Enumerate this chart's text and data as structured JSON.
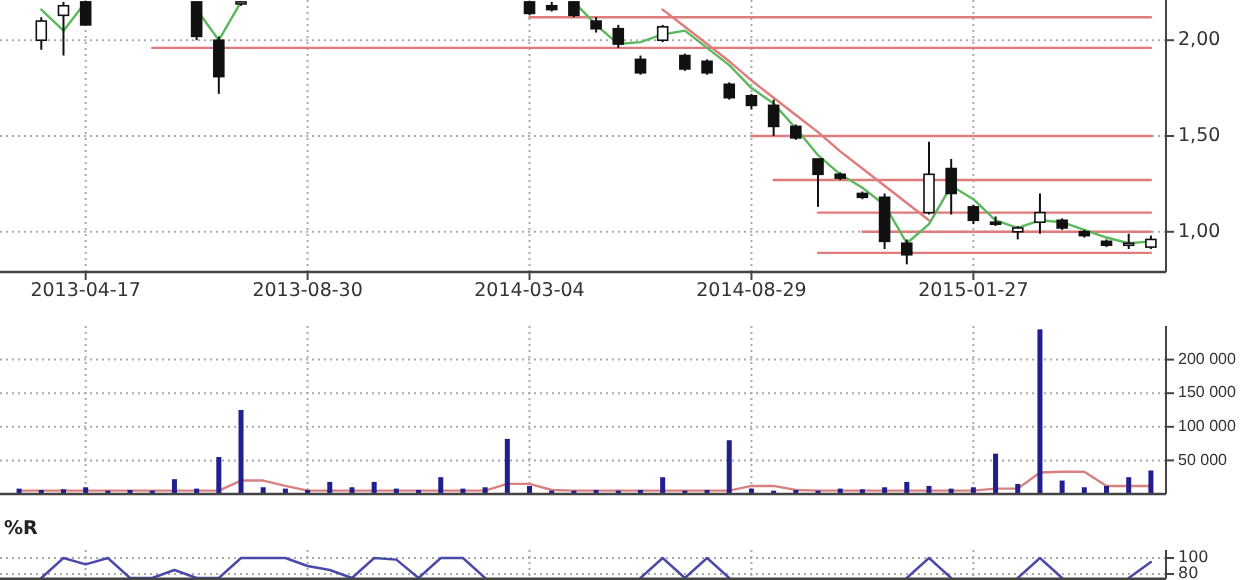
{
  "chart_data": [
    {
      "type": "candlestick",
      "categories": [
        null,
        null,
        null,
        "2013-04-17",
        null,
        null,
        null,
        null,
        null,
        null,
        null,
        null,
        null,
        "2013-08-30",
        null,
        null,
        null,
        null,
        null,
        null,
        null,
        null,
        null,
        "2014-03-04",
        null,
        null,
        null,
        null,
        null,
        null,
        null,
        null,
        null,
        "2014-08-29",
        null,
        null,
        null,
        null,
        null,
        null,
        null,
        null,
        null,
        "2015-01-27",
        null,
        null,
        null,
        null,
        null,
        null,
        null,
        null
      ],
      "ohlc": [
        null,
        [
          2.0,
          2.12,
          1.95,
          2.1
        ],
        [
          2.13,
          2.2,
          1.92,
          2.18
        ],
        [
          2.2,
          2.2,
          2.08,
          2.08
        ],
        null,
        null,
        null,
        null,
        [
          2.2,
          2.2,
          2.0,
          2.02
        ],
        [
          2.0,
          2.02,
          1.72,
          1.81
        ],
        [
          2.19,
          2.2,
          2.18,
          2.2
        ],
        null,
        null,
        null,
        null,
        null,
        null,
        null,
        null,
        null,
        null,
        null,
        null,
        [
          2.2,
          2.2,
          2.13,
          2.14
        ],
        [
          2.18,
          2.2,
          2.15,
          2.16
        ],
        [
          2.2,
          2.2,
          2.12,
          2.13
        ],
        [
          2.1,
          2.12,
          2.04,
          2.06
        ],
        [
          2.06,
          2.08,
          1.96,
          1.98
        ],
        [
          1.9,
          1.92,
          1.82,
          1.83
        ],
        [
          2.0,
          2.08,
          1.99,
          2.07
        ],
        [
          1.92,
          1.93,
          1.84,
          1.85
        ],
        [
          1.89,
          1.9,
          1.82,
          1.83
        ],
        [
          1.77,
          1.78,
          1.69,
          1.7
        ],
        [
          1.71,
          1.72,
          1.64,
          1.66
        ],
        [
          1.66,
          1.69,
          1.5,
          1.55
        ],
        [
          1.55,
          1.56,
          1.48,
          1.49
        ],
        [
          1.38,
          1.38,
          1.13,
          1.3
        ],
        [
          1.3,
          1.31,
          1.27,
          1.28
        ],
        [
          1.2,
          1.21,
          1.17,
          1.18
        ],
        [
          1.18,
          1.2,
          0.91,
          0.95
        ],
        [
          0.94,
          0.96,
          0.83,
          0.88
        ],
        [
          1.1,
          1.47,
          1.09,
          1.3
        ],
        [
          1.33,
          1.38,
          1.09,
          1.2
        ],
        [
          1.13,
          1.14,
          1.04,
          1.06
        ],
        [
          1.05,
          1.08,
          1.03,
          1.04
        ],
        [
          1.0,
          1.03,
          0.96,
          1.02
        ],
        [
          1.05,
          1.2,
          0.99,
          1.1
        ],
        [
          1.06,
          1.07,
          1.01,
          1.02
        ],
        [
          1.0,
          1.01,
          0.97,
          0.98
        ],
        [
          0.95,
          0.96,
          0.92,
          0.93
        ],
        [
          0.93,
          0.99,
          0.91,
          0.94
        ],
        [
          0.92,
          0.98,
          0.91,
          0.96
        ]
      ],
      "series": [
        {
          "type": "line",
          "color": "#e07b7b",
          "values": [
            null,
            null,
            null,
            null,
            null,
            null,
            null,
            null,
            null,
            null,
            null,
            null,
            null,
            null,
            null,
            null,
            null,
            null,
            null,
            null,
            null,
            null,
            null,
            2.12,
            2.12,
            2.12,
            2.12,
            2.12,
            2.12,
            2.12,
            2.12,
            2.12,
            2.12,
            2.12,
            2.12,
            2.12,
            2.12,
            2.12,
            2.12,
            2.12,
            2.12,
            2.12,
            2.12,
            2.12,
            2.12,
            2.12,
            2.12,
            2.12,
            2.12,
            2.12,
            2.12,
            2.12
          ]
        },
        {
          "type": "line",
          "color": "#e07b7b",
          "values": [
            null,
            null,
            null,
            null,
            null,
            null,
            1.96,
            1.96,
            1.96,
            1.96,
            1.96,
            1.96,
            1.96,
            1.96,
            1.96,
            1.96,
            1.96,
            1.96,
            1.96,
            1.96,
            1.96,
            1.96,
            1.96,
            1.96,
            1.96,
            1.96,
            1.96,
            1.96,
            1.96,
            1.96,
            1.96,
            1.96,
            1.96,
            1.96,
            1.96,
            1.96,
            1.96,
            1.96,
            1.96,
            1.96,
            1.96,
            1.96,
            1.96,
            1.96,
            1.96,
            1.96,
            1.96,
            1.96,
            1.96,
            1.96,
            1.96,
            1.96
          ]
        },
        {
          "type": "line",
          "color": "#e07b7b",
          "values": [
            null,
            null,
            null,
            null,
            null,
            null,
            null,
            null,
            null,
            null,
            null,
            null,
            null,
            null,
            null,
            null,
            null,
            null,
            null,
            null,
            null,
            null,
            null,
            null,
            null,
            null,
            null,
            null,
            null,
            null,
            null,
            null,
            null,
            1.5,
            1.5,
            1.5,
            1.5,
            1.5,
            1.5,
            1.5,
            1.5,
            1.5,
            1.5,
            1.5,
            1.5,
            1.5,
            1.5,
            1.5,
            1.5,
            1.5,
            1.5,
            1.5
          ]
        },
        {
          "type": "line",
          "color": "#e07b7b",
          "values": [
            null,
            null,
            null,
            null,
            null,
            null,
            null,
            null,
            null,
            null,
            null,
            null,
            null,
            null,
            null,
            null,
            null,
            null,
            null,
            null,
            null,
            null,
            null,
            null,
            null,
            null,
            null,
            null,
            null,
            null,
            null,
            null,
            null,
            null,
            1.27,
            1.27,
            1.27,
            1.27,
            1.27,
            1.27,
            1.27,
            1.27,
            1.27,
            1.27,
            1.27,
            1.27,
            1.27,
            1.27,
            1.27,
            1.27,
            1.27,
            1.27
          ]
        },
        {
          "type": "line",
          "color": "#e07b7b",
          "values": [
            null,
            null,
            null,
            null,
            null,
            null,
            null,
            null,
            null,
            null,
            null,
            null,
            null,
            null,
            null,
            null,
            null,
            null,
            null,
            null,
            null,
            null,
            null,
            null,
            null,
            null,
            null,
            null,
            null,
            null,
            null,
            null,
            null,
            null,
            null,
            null,
            1.1,
            1.1,
            1.1,
            1.1,
            1.1,
            1.1,
            1.1,
            1.1,
            1.1,
            1.1,
            1.1,
            1.1,
            1.1,
            1.1,
            1.1,
            1.1
          ]
        },
        {
          "type": "line",
          "color": "#e07b7b",
          "values": [
            null,
            null,
            null,
            null,
            null,
            null,
            null,
            null,
            null,
            null,
            null,
            null,
            null,
            null,
            null,
            null,
            null,
            null,
            null,
            null,
            null,
            null,
            null,
            null,
            null,
            null,
            null,
            null,
            null,
            null,
            null,
            null,
            null,
            null,
            null,
            null,
            null,
            null,
            1.0,
            1.0,
            1.0,
            1.0,
            1.0,
            1.0,
            1.0,
            1.0,
            1.0,
            1.0,
            1.0,
            1.0,
            1.0,
            1.0
          ]
        },
        {
          "type": "line",
          "color": "#e07b7b",
          "values": [
            null,
            null,
            null,
            null,
            null,
            null,
            null,
            null,
            null,
            null,
            null,
            null,
            null,
            null,
            null,
            null,
            null,
            null,
            null,
            null,
            null,
            null,
            null,
            null,
            null,
            null,
            null,
            null,
            null,
            null,
            null,
            null,
            null,
            null,
            null,
            null,
            0.89,
            0.89,
            0.89,
            0.89,
            0.89,
            0.89,
            0.89,
            0.89,
            0.89,
            0.89,
            0.89,
            0.89,
            0.89,
            0.89,
            0.89,
            0.89
          ]
        },
        {
          "type": "line",
          "color": "#e07b7b",
          "values": [
            null,
            null,
            null,
            null,
            null,
            null,
            null,
            null,
            null,
            null,
            null,
            null,
            null,
            null,
            null,
            null,
            null,
            null,
            null,
            null,
            null,
            null,
            null,
            null,
            null,
            null,
            null,
            null,
            null,
            2.16,
            2.07,
            1.98,
            1.89,
            1.79,
            1.7,
            1.61,
            1.52,
            1.42,
            1.33,
            1.24,
            1.15,
            1.06,
            null,
            null,
            null,
            null,
            null,
            null,
            null,
            null,
            null,
            null
          ]
        },
        {
          "type": "line",
          "color": "#5cb85c",
          "values": [
            null,
            2.16,
            2.05,
            2.2,
            null,
            null,
            null,
            null,
            2.16,
            2.0,
            2.2,
            null,
            null,
            null,
            null,
            null,
            null,
            null,
            null,
            null,
            null,
            null,
            null,
            null,
            null,
            2.2,
            2.08,
            1.98,
            1.99,
            2.03,
            2.05,
            1.96,
            1.87,
            1.75,
            1.67,
            1.54,
            1.4,
            1.3,
            1.23,
            1.14,
            0.94,
            1.04,
            1.24,
            1.17,
            1.06,
            1.02,
            1.06,
            1.05,
            1.01,
            0.97,
            0.94,
            0.95
          ]
        }
      ],
      "ylim": [
        0.79,
        2.21
      ],
      "yticks": [
        {
          "value": 1,
          "label": "1,00"
        },
        {
          "value": 1.5,
          "label": "1,50"
        },
        {
          "value": 2,
          "label": "2,00"
        }
      ],
      "grid": true
    },
    {
      "type": "bar",
      "categories": [
        null,
        null,
        null,
        "2013-04-17",
        null,
        null,
        null,
        null,
        null,
        null,
        null,
        null,
        null,
        "2013-08-30",
        null,
        null,
        null,
        null,
        null,
        null,
        null,
        null,
        null,
        "2014-03-04",
        null,
        null,
        null,
        null,
        null,
        null,
        null,
        null,
        null,
        "2014-08-29",
        null,
        null,
        null,
        null,
        null,
        null,
        null,
        null,
        null,
        "2015-01-27",
        null,
        null,
        null,
        null,
        null,
        null,
        null,
        null
      ],
      "values": [
        8000,
        6000,
        7000,
        10000,
        5000,
        6000,
        5000,
        22000,
        8000,
        55000,
        125000,
        10000,
        8000,
        6000,
        18000,
        10000,
        18000,
        8000,
        6000,
        25000,
        8000,
        10000,
        82000,
        12000,
        5000,
        5000,
        6000,
        5000,
        6000,
        25000,
        5000,
        6000,
        80000,
        8000,
        5000,
        6000,
        5000,
        8000,
        7000,
        10000,
        18000,
        12000,
        8000,
        10000,
        60000,
        15000,
        245000,
        20000,
        10000,
        12000,
        25000,
        35000
      ],
      "color": "#1f1f8f",
      "series": [
        {
          "type": "line",
          "color": "#d98080",
          "values": [
            5000,
            5000,
            5000,
            5000,
            5000,
            5000,
            5000,
            5000,
            5000,
            5000,
            20000,
            20000,
            12000,
            5000,
            5000,
            5000,
            5000,
            5000,
            5000,
            5000,
            5000,
            5000,
            15000,
            15000,
            6000,
            5000,
            5000,
            5000,
            5000,
            5000,
            5000,
            5000,
            5000,
            12000,
            12000,
            6000,
            5000,
            5000,
            5000,
            5000,
            5000,
            5000,
            5000,
            5000,
            8000,
            8000,
            32000,
            33000,
            33000,
            12000,
            12000,
            12000
          ]
        }
      ],
      "ylim": [
        0,
        250000
      ],
      "yticks": [
        {
          "value": 50000,
          "label": "50 000"
        },
        {
          "value": 100000,
          "label": "100 000"
        },
        {
          "value": 150000,
          "label": "150 000"
        },
        {
          "value": 200000,
          "label": "200 000"
        }
      ],
      "grid": true,
      "tick_labels": "y"
    },
    {
      "type": "line",
      "title": "%R",
      "categories": [
        null,
        null,
        null,
        "2013-04-17",
        null,
        null,
        null,
        null,
        null,
        null,
        null,
        null,
        null,
        "2013-08-30",
        null,
        null,
        null,
        null,
        null,
        null,
        null,
        null,
        null,
        "2014-03-04",
        null,
        null,
        null,
        null,
        null,
        null,
        null,
        null,
        null,
        "2014-08-29",
        null,
        null,
        null,
        null,
        null,
        null,
        null,
        null,
        null,
        "2015-01-27",
        null,
        null,
        null,
        null,
        null,
        null,
        null,
        null
      ],
      "values": [
        null,
        75,
        100,
        92,
        100,
        75,
        75,
        85,
        75,
        75,
        100,
        100,
        100,
        90,
        85,
        75,
        100,
        98,
        75,
        100,
        100,
        75,
        null,
        null,
        null,
        null,
        null,
        null,
        75,
        100,
        75,
        100,
        75,
        null,
        null,
        null,
        null,
        null,
        null,
        null,
        75,
        100,
        75,
        null,
        null,
        75,
        100,
        75,
        null,
        null,
        75,
        95
      ],
      "color": "#4a4aa8",
      "ylim": [
        74,
        110
      ],
      "yticks": [
        80,
        100
      ],
      "grid": true,
      "tick_labels": "y"
    }
  ]
}
